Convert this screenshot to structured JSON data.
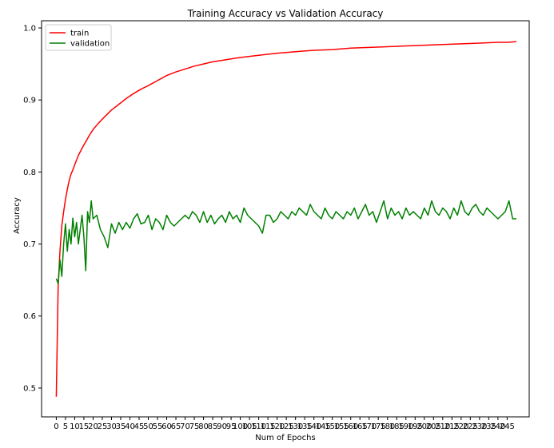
{
  "chart_data": {
    "type": "line",
    "title": "Training Accuracy vs Validation Accuracy",
    "xlabel": "Num of Epochs",
    "ylabel": "Accuracy",
    "xlim": [
      -8,
      257
    ],
    "ylim": [
      0.46,
      1.01
    ],
    "x_ticks": [
      0,
      5,
      10,
      15,
      20,
      25,
      30,
      35,
      40,
      45,
      50,
      55,
      60,
      65,
      70,
      75,
      80,
      85,
      90,
      95,
      100,
      105,
      110,
      115,
      120,
      125,
      130,
      135,
      140,
      145,
      150,
      155,
      160,
      165,
      170,
      175,
      180,
      185,
      190,
      195,
      200,
      205,
      210,
      215,
      220,
      225,
      230,
      235,
      240,
      245
    ],
    "y_ticks": [
      0.5,
      0.6,
      0.7,
      0.8,
      0.9,
      1.0
    ],
    "y_tick_labels": [
      "0.5",
      "0.6",
      "0.7",
      "0.8",
      "0.9",
      "1.0"
    ],
    "legend": {
      "location": "upper-left"
    },
    "grid": false,
    "series": [
      {
        "name": "train",
        "color": "#ff0000",
        "x": [
          0,
          1,
          2,
          3,
          4,
          5,
          6,
          7,
          8,
          9,
          10,
          12,
          14,
          16,
          18,
          20,
          23,
          26,
          30,
          34,
          38,
          42,
          46,
          50,
          55,
          60,
          65,
          70,
          75,
          80,
          85,
          90,
          95,
          100,
          110,
          120,
          130,
          140,
          150,
          160,
          170,
          180,
          190,
          200,
          210,
          220,
          230,
          240,
          245,
          250
        ],
        "y": [
          0.488,
          0.64,
          0.69,
          0.725,
          0.745,
          0.762,
          0.776,
          0.788,
          0.797,
          0.803,
          0.81,
          0.823,
          0.833,
          0.842,
          0.851,
          0.859,
          0.868,
          0.876,
          0.886,
          0.894,
          0.902,
          0.909,
          0.915,
          0.92,
          0.927,
          0.934,
          0.939,
          0.943,
          0.947,
          0.95,
          0.953,
          0.955,
          0.957,
          0.959,
          0.962,
          0.965,
          0.967,
          0.969,
          0.97,
          0.972,
          0.973,
          0.974,
          0.975,
          0.976,
          0.977,
          0.978,
          0.979,
          0.98,
          0.98,
          0.981
        ]
      },
      {
        "name": "validation",
        "color": "#008000",
        "x": [
          0,
          1,
          2,
          3,
          4,
          5,
          6,
          7,
          8,
          9,
          10,
          11,
          12,
          13,
          14,
          15,
          16,
          17,
          18,
          19,
          20,
          22,
          24,
          26,
          28,
          30,
          32,
          34,
          36,
          38,
          40,
          42,
          44,
          46,
          48,
          50,
          52,
          54,
          56,
          58,
          60,
          62,
          64,
          66,
          68,
          70,
          72,
          74,
          76,
          78,
          80,
          82,
          84,
          86,
          88,
          90,
          92,
          94,
          96,
          98,
          100,
          102,
          104,
          106,
          108,
          110,
          112,
          114,
          116,
          118,
          120,
          122,
          124,
          126,
          128,
          130,
          132,
          134,
          136,
          138,
          140,
          142,
          144,
          146,
          148,
          150,
          152,
          154,
          156,
          158,
          160,
          162,
          164,
          166,
          168,
          170,
          172,
          174,
          176,
          178,
          180,
          182,
          184,
          186,
          188,
          190,
          192,
          194,
          196,
          198,
          200,
          202,
          204,
          206,
          208,
          210,
          212,
          214,
          216,
          218,
          220,
          222,
          224,
          226,
          228,
          230,
          232,
          234,
          236,
          238,
          240,
          242,
          244,
          246,
          248,
          250
        ],
        "y": [
          0.652,
          0.645,
          0.678,
          0.655,
          0.7,
          0.728,
          0.69,
          0.72,
          0.7,
          0.736,
          0.71,
          0.73,
          0.7,
          0.72,
          0.74,
          0.71,
          0.663,
          0.745,
          0.73,
          0.76,
          0.735,
          0.74,
          0.72,
          0.71,
          0.695,
          0.728,
          0.715,
          0.73,
          0.72,
          0.73,
          0.722,
          0.735,
          0.742,
          0.728,
          0.73,
          0.74,
          0.72,
          0.735,
          0.73,
          0.72,
          0.74,
          0.73,
          0.725,
          0.73,
          0.735,
          0.74,
          0.735,
          0.745,
          0.74,
          0.73,
          0.745,
          0.73,
          0.74,
          0.728,
          0.735,
          0.74,
          0.73,
          0.745,
          0.735,
          0.74,
          0.73,
          0.75,
          0.74,
          0.735,
          0.73,
          0.725,
          0.715,
          0.74,
          0.74,
          0.73,
          0.735,
          0.745,
          0.74,
          0.735,
          0.745,
          0.74,
          0.75,
          0.745,
          0.74,
          0.755,
          0.745,
          0.74,
          0.735,
          0.75,
          0.74,
          0.735,
          0.745,
          0.74,
          0.735,
          0.745,
          0.74,
          0.75,
          0.735,
          0.745,
          0.755,
          0.74,
          0.745,
          0.73,
          0.745,
          0.76,
          0.735,
          0.75,
          0.74,
          0.745,
          0.735,
          0.75,
          0.74,
          0.745,
          0.74,
          0.735,
          0.75,
          0.74,
          0.76,
          0.745,
          0.74,
          0.75,
          0.745,
          0.735,
          0.75,
          0.74,
          0.76,
          0.745,
          0.74,
          0.75,
          0.755,
          0.745,
          0.74,
          0.75,
          0.745,
          0.74,
          0.735,
          0.74,
          0.745,
          0.76,
          0.735,
          0.735
        ]
      }
    ]
  }
}
